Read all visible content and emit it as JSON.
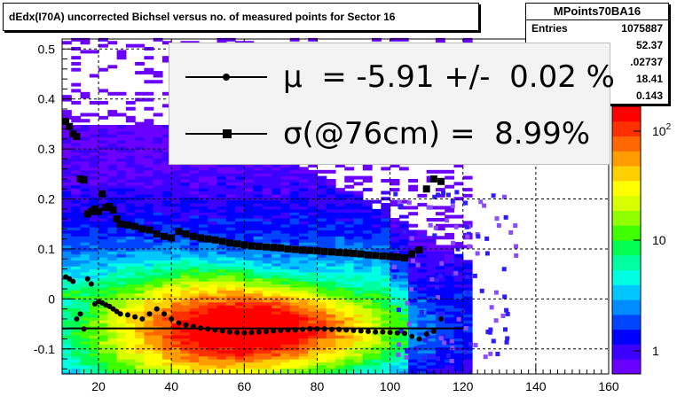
{
  "title": "dEdx(I70A) uncorrected Bichsel versus no. of measured points for Sector 16",
  "stats": {
    "name": "MPoints70BA16",
    "rows": [
      {
        "label": "Entries",
        "value": "1075887"
      },
      {
        "label": "",
        "value": "52.37"
      },
      {
        "label": "",
        "value": ".02737"
      },
      {
        "label": "",
        "value": "18.41"
      },
      {
        "label": "",
        "value": "0.143"
      }
    ]
  },
  "legend": {
    "mu_text": "μ  = -5.91 +/-  0.02 %",
    "sigma_text": "σ(@76cm) =  8.99%"
  },
  "colors": {
    "frame": "#000000",
    "grid": "#000000"
  },
  "chart_data": {
    "type": "heatmap",
    "title": "dEdx(I70A) uncorrected Bichsel versus no. of measured points for Sector 16",
    "xlim": [
      10,
      160
    ],
    "ylim": [
      -0.15,
      0.52
    ],
    "xticks": [
      20,
      40,
      60,
      80,
      100,
      120,
      140,
      160
    ],
    "yticks": [
      -0.1,
      0,
      0.1,
      0.2,
      0.3,
      0.4,
      0.5
    ],
    "ytick_labels": [
      "-0.1",
      "0",
      "0.1",
      "0.2",
      "0.3",
      "0.4",
      "0.5"
    ],
    "zscale": "log",
    "zticks": [
      "1",
      "10",
      "10^2"
    ],
    "grid": true,
    "fit_line": {
      "x": [
        10,
        120
      ],
      "y": [
        -0.059,
        -0.059
      ]
    },
    "series": [
      {
        "marker": "square",
        "x": [
          11,
          12,
          13,
          14,
          15,
          16,
          17,
          18,
          19,
          20,
          21,
          22,
          23,
          24,
          25,
          26,
          28,
          30,
          32,
          34,
          36,
          38,
          40,
          42,
          44,
          46,
          48,
          50,
          52,
          54,
          56,
          58,
          60,
          62,
          64,
          66,
          68,
          70,
          72,
          74,
          76,
          78,
          80,
          82,
          84,
          86,
          88,
          90,
          92,
          94,
          96,
          98,
          100,
          102,
          104,
          106,
          108,
          110,
          112,
          114
        ],
        "y": [
          0.355,
          0.345,
          0.33,
          0.325,
          0.24,
          0.238,
          0.17,
          0.175,
          0.18,
          0.175,
          0.21,
          0.183,
          0.185,
          0.178,
          0.16,
          0.15,
          0.148,
          0.145,
          0.14,
          0.138,
          0.13,
          0.125,
          0.122,
          0.135,
          0.13,
          0.125,
          0.122,
          0.12,
          0.118,
          0.115,
          0.112,
          0.11,
          0.108,
          0.106,
          0.105,
          0.104,
          0.103,
          0.102,
          0.1,
          0.099,
          0.098,
          0.097,
          0.096,
          0.095,
          0.094,
          0.093,
          0.092,
          0.091,
          0.09,
          0.088,
          0.087,
          0.086,
          0.085,
          0.084,
          0.082,
          0.09,
          0.098,
          0.22,
          0.24,
          0.235
        ]
      },
      {
        "marker": "circle",
        "x": [
          11,
          12,
          13,
          14,
          15,
          16,
          17,
          18,
          19,
          20,
          21,
          22,
          23,
          24,
          25,
          26,
          28,
          30,
          32,
          34,
          36,
          38,
          40,
          42,
          44,
          46,
          48,
          50,
          52,
          54,
          56,
          58,
          60,
          62,
          64,
          66,
          68,
          70,
          72,
          74,
          76,
          78,
          80,
          82,
          84,
          86,
          88,
          90,
          92,
          94,
          96,
          98,
          100,
          102,
          104,
          106,
          108,
          110,
          112,
          114
        ],
        "y": [
          0.044,
          0.04,
          0.035,
          -0.04,
          -0.03,
          -0.06,
          0.04,
          0.03,
          -0.01,
          -0.005,
          -0.008,
          -0.012,
          -0.015,
          -0.02,
          -0.025,
          -0.03,
          -0.032,
          -0.036,
          -0.04,
          -0.03,
          -0.02,
          -0.03,
          -0.04,
          -0.048,
          -0.052,
          -0.055,
          -0.058,
          -0.06,
          -0.062,
          -0.064,
          -0.066,
          -0.067,
          -0.068,
          -0.067,
          -0.066,
          -0.065,
          -0.064,
          -0.063,
          -0.062,
          -0.062,
          -0.061,
          -0.06,
          -0.06,
          -0.06,
          -0.061,
          -0.061,
          -0.062,
          -0.063,
          -0.064,
          -0.065,
          -0.066,
          -0.066,
          -0.067,
          -0.068,
          -0.069,
          -0.075,
          -0.08,
          -0.07,
          -0.065,
          -0.04
        ]
      }
    ]
  }
}
